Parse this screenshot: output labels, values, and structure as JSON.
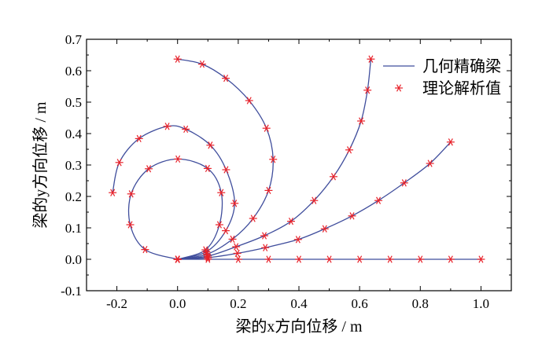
{
  "chart_data": {
    "type": "line",
    "xlabel": "梁的x方向位移 / m",
    "ylabel": "梁的y方向位移 / m",
    "xlim": [
      -0.3,
      1.1
    ],
    "ylim": [
      -0.1,
      0.7
    ],
    "x_ticks": [
      "-0.2",
      "0.0",
      "0.2",
      "0.4",
      "0.6",
      "0.8",
      "1.0"
    ],
    "y_ticks": [
      "-0.1",
      "0.0",
      "0.1",
      "0.2",
      "0.3",
      "0.4",
      "0.5",
      "0.6",
      "0.7"
    ],
    "legend": {
      "position": "top-right",
      "line_label": "几何精确梁",
      "marker_label": "理论解析值"
    },
    "colors": {
      "line": "#3f4d9c",
      "marker": "#e8222a"
    },
    "series": [
      {
        "x": [
          0.0,
          0.1,
          0.2,
          0.3,
          0.4,
          0.5,
          0.6,
          0.7,
          0.8,
          0.9,
          1.0
        ],
        "y": [
          0.0,
          0.0,
          0.0,
          0.0,
          0.0,
          0.0,
          0.0,
          0.0,
          0.0,
          0.0,
          0.0
        ]
      },
      {
        "x": [
          0.0,
          0.1,
          0.197,
          0.289,
          0.397,
          0.485,
          0.575,
          0.662,
          0.747,
          0.832,
          0.9
        ],
        "y": [
          0.0,
          0.005,
          0.019,
          0.037,
          0.063,
          0.097,
          0.138,
          0.187,
          0.243,
          0.305,
          0.373
        ]
      },
      {
        "x": [
          0.0,
          0.099,
          0.193,
          0.286,
          0.374,
          0.45,
          0.514,
          0.566,
          0.605,
          0.626,
          0.637
        ],
        "y": [
          0.0,
          0.01,
          0.04,
          0.075,
          0.121,
          0.187,
          0.263,
          0.348,
          0.44,
          0.538,
          0.637
        ]
      },
      {
        "x": [
          0.0,
          0.097,
          0.181,
          0.249,
          0.3,
          0.315,
          0.293,
          0.236,
          0.159,
          0.081,
          0.0
        ],
        "y": [
          0.0,
          0.016,
          0.064,
          0.13,
          0.219,
          0.318,
          0.417,
          0.505,
          0.576,
          0.621,
          0.637
        ]
      },
      {
        "x": [
          0.0,
          0.095,
          0.159,
          0.188,
          0.16,
          0.108,
          0.027,
          -0.034,
          -0.127,
          -0.192,
          -0.214
        ],
        "y": [
          0.0,
          0.024,
          0.091,
          0.178,
          0.285,
          0.363,
          0.414,
          0.423,
          0.384,
          0.308,
          0.212
        ]
      },
      {
        "x": [
          0.0,
          0.092,
          0.138,
          0.144,
          0.099,
          0.001,
          -0.095,
          -0.153,
          -0.156,
          -0.107,
          0.0
        ],
        "y": [
          0.0,
          0.03,
          0.11,
          0.212,
          0.289,
          0.319,
          0.288,
          0.208,
          0.11,
          0.031,
          0.0
        ]
      }
    ]
  }
}
